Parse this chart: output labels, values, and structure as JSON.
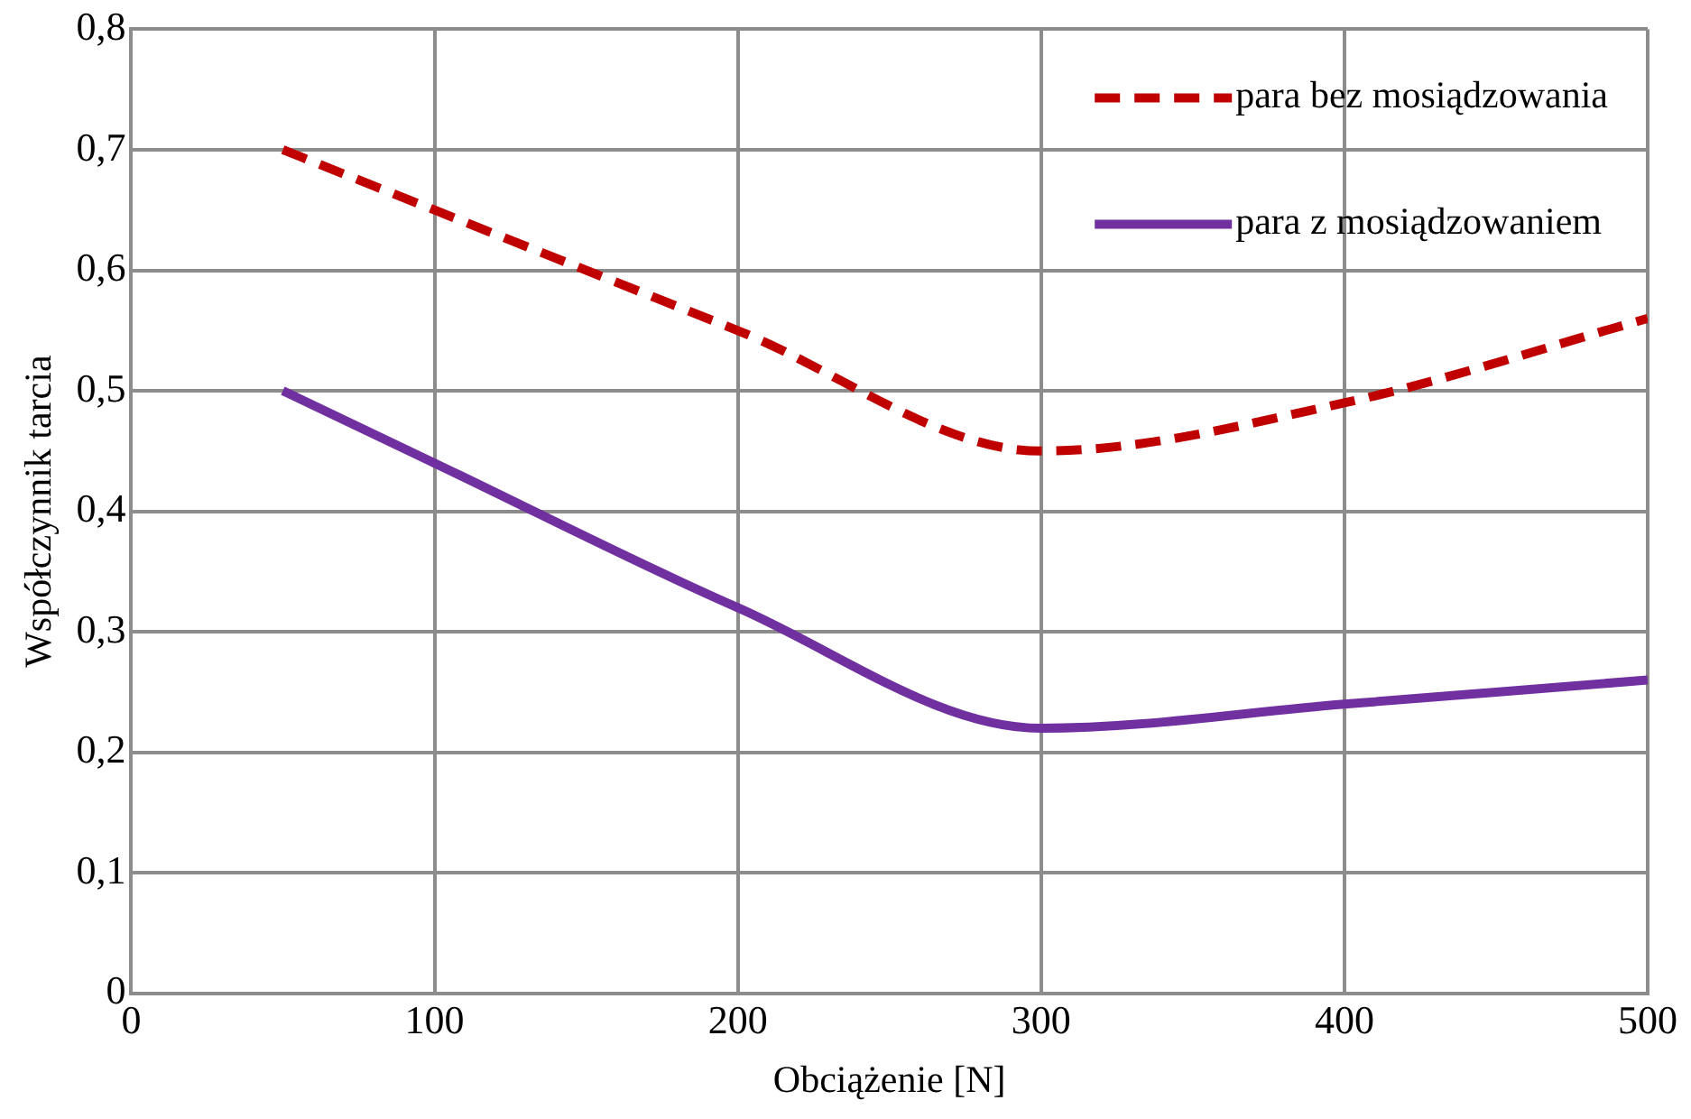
{
  "chart_data": {
    "type": "line",
    "xlabel": "Obciążenie [N]",
    "ylabel": "Współczynnik tarcia",
    "xlim": [
      0,
      500
    ],
    "xticks": [
      0,
      100,
      200,
      300,
      400,
      500
    ],
    "ylim": [
      0,
      0.8
    ],
    "yticks": [
      {
        "value": 0,
        "label": "0"
      },
      {
        "value": 0.1,
        "label": "0,1"
      },
      {
        "value": 0.2,
        "label": "0,2"
      },
      {
        "value": 0.3,
        "label": "0,3"
      },
      {
        "value": 0.4,
        "label": "0,4"
      },
      {
        "value": 0.5,
        "label": "0,5"
      },
      {
        "value": 0.6,
        "label": "0,6"
      },
      {
        "value": 0.7,
        "label": "0,7"
      },
      {
        "value": 0.8,
        "label": "0,8"
      }
    ],
    "x": [
      50,
      100,
      200,
      300,
      400,
      500
    ],
    "series": [
      {
        "name": "para bez mosiądzowania",
        "color": "#c00000",
        "line_style": "dashed",
        "values": [
          0.7,
          0.65,
          0.55,
          0.45,
          0.49,
          0.56
        ]
      },
      {
        "name": "para z mosiądzowaniem",
        "color": "#7030a0",
        "line_style": "solid",
        "values": [
          0.5,
          0.44,
          0.32,
          0.22,
          0.24,
          0.26
        ]
      }
    ],
    "grid": true,
    "legend": "top right",
    "marker": "none"
  }
}
